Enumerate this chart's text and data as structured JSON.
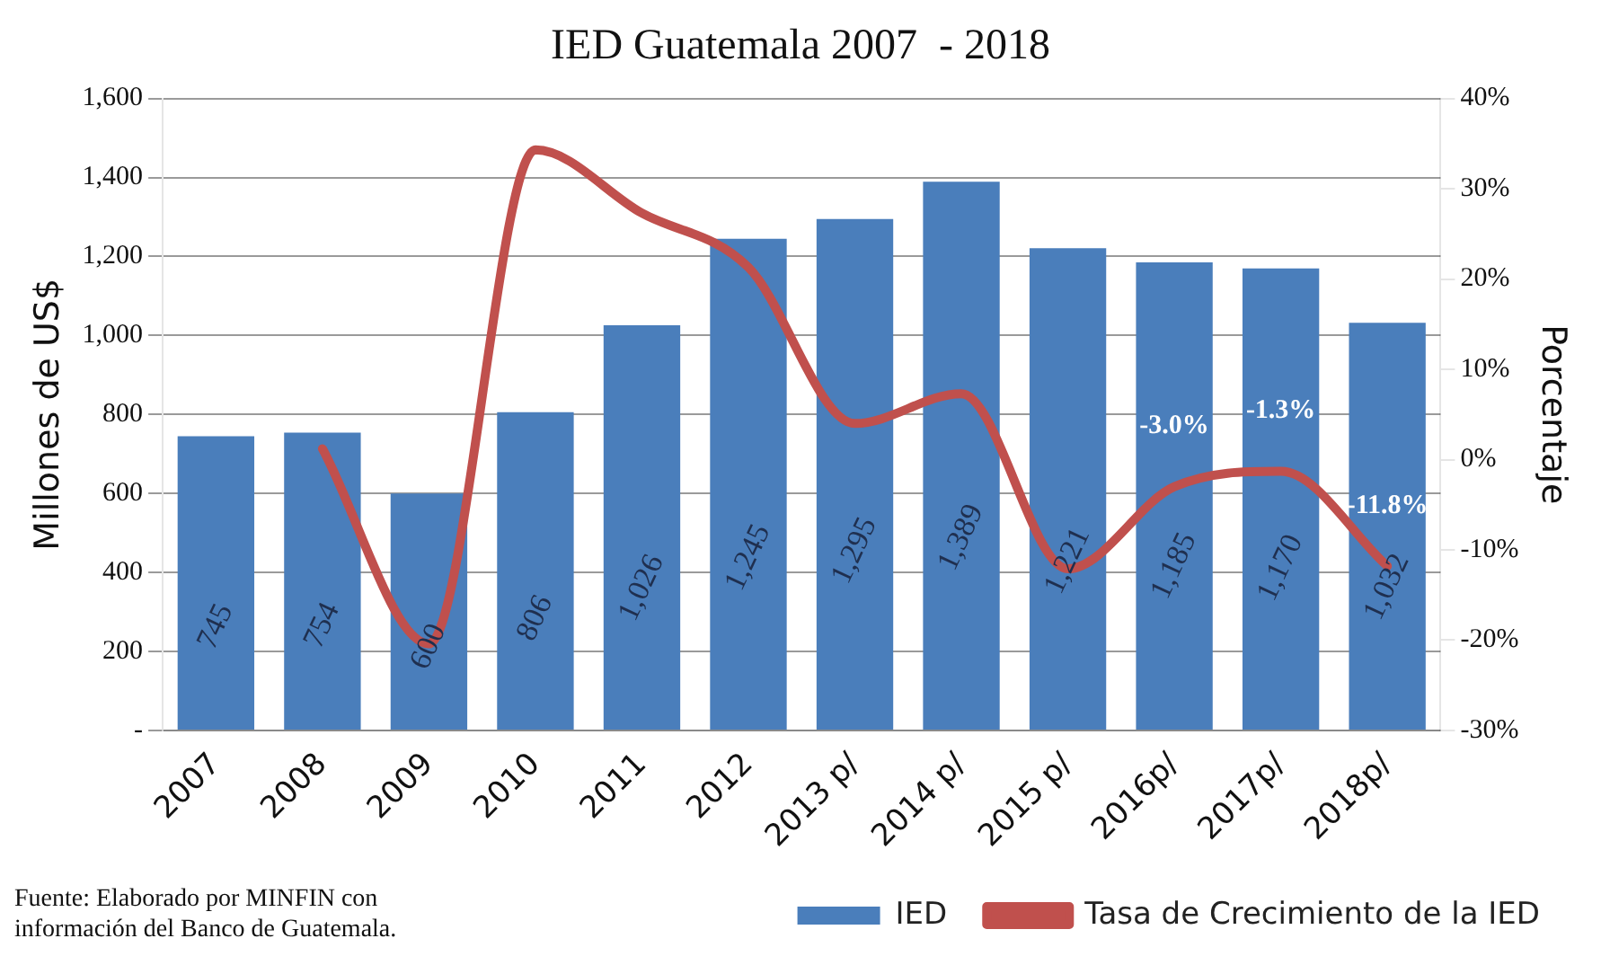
{
  "chart_data": {
    "type": "bar",
    "title": "IED Guatemala 2007  - 2018",
    "ylabel": "Millones de US$",
    "y2label": "Porcentaje",
    "categories": [
      "2007",
      "2008",
      "2009",
      "2010",
      "2011",
      "2012",
      "2013 p/",
      "2014 p/",
      "2015 p/",
      "2016p/",
      "2017p/",
      "2018p/"
    ],
    "series": [
      {
        "name": "IED",
        "color": "#4a7ebb",
        "values": [
          745,
          754,
          600,
          806,
          1026,
          1245,
          1295,
          1389,
          1221,
          1185,
          1170,
          1032
        ],
        "value_labels": [
          "745",
          "754",
          "600",
          "806",
          "1,026",
          "1,245",
          "1,295",
          "1,389",
          "1,221",
          "1,185",
          "1,170",
          "1,032"
        ]
      },
      {
        "name": "Tasa de Crecimiento de la IED",
        "type": "line",
        "axis": "y2",
        "color": "#c0504d",
        "values": [
          null,
          1.2,
          -20.4,
          34.3,
          27.3,
          21.3,
          4.0,
          7.3,
          -12.1,
          -3.0,
          -1.3,
          -11.8
        ],
        "value_labels": [
          null,
          null,
          null,
          null,
          null,
          null,
          null,
          null,
          null,
          "-3.0%",
          "-1.3%",
          "-11.8%"
        ]
      }
    ],
    "ylim": [
      0,
      1600
    ],
    "yticks": [
      {
        "value": 0,
        "label": "-"
      },
      200,
      400,
      600,
      800,
      {
        "value": 1000,
        "label": "1,000"
      },
      {
        "value": 1200,
        "label": "1,200"
      },
      {
        "value": 1400,
        "label": "1,400"
      },
      {
        "value": 1600,
        "label": "1,600"
      }
    ],
    "y2lim": [
      -30,
      40
    ],
    "y2ticks": [
      {
        "value": -30,
        "label": "-30%"
      },
      {
        "value": -20,
        "label": "-20%"
      },
      {
        "value": -10,
        "label": "-10%"
      },
      {
        "value": 0,
        "label": "0%"
      },
      {
        "value": 10,
        "label": "10%"
      },
      {
        "value": 20,
        "label": "20%"
      },
      {
        "value": 30,
        "label": "30%"
      },
      {
        "value": 40,
        "label": "40%"
      }
    ],
    "grid": "y",
    "legend": "bottom right",
    "marker": "none",
    "line_style": "solid",
    "annotations": [
      "Fuente: Elaborado por MINFIN  con información del Banco de Guatemala."
    ]
  }
}
